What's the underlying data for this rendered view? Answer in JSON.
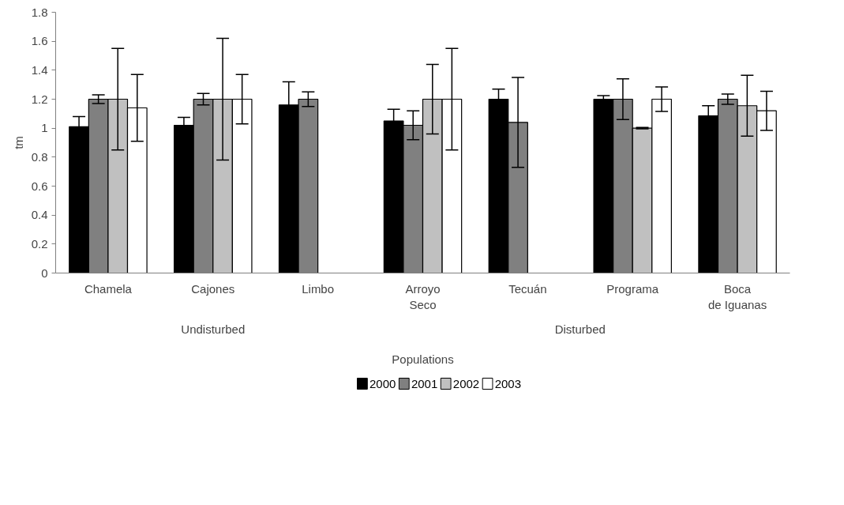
{
  "chart_data": {
    "type": "bar",
    "xlabel": "Populations",
    "ylabel": "tm",
    "categories": [
      "Chamela",
      "Cajones",
      "Limbo",
      "Arroyo Seco",
      "Tecuán",
      "Programa",
      "Boca de Iguanas"
    ],
    "series": [
      {
        "name": "2000",
        "color": "#000000",
        "values": [
          1.01,
          1.02,
          1.16,
          1.05,
          1.2,
          1.2,
          1.085
        ],
        "errors": [
          0.07,
          0.055,
          0.16,
          0.08,
          0.07,
          0.025,
          0.07
        ]
      },
      {
        "name": "2001",
        "color": "#808080",
        "values": [
          1.2,
          1.2,
          1.2,
          1.02,
          1.04,
          1.2,
          1.2
        ],
        "errors": [
          0.03,
          0.04,
          0.05,
          0.1,
          0.31,
          0.14,
          0.035
        ]
      },
      {
        "name": "2002",
        "color": "#c0c0c0",
        "values": [
          1.2,
          1.2,
          0,
          1.2,
          0,
          1.0,
          1.155
        ],
        "errors": [
          0.35,
          0.42,
          null,
          0.24,
          null,
          0.005,
          0.21
        ]
      },
      {
        "name": "2003",
        "color": "#ffffff",
        "values": [
          1.14,
          1.2,
          0,
          1.2,
          0,
          1.2,
          1.12
        ],
        "errors": [
          0.23,
          0.17,
          null,
          0.35,
          null,
          0.085,
          0.135
        ]
      }
    ],
    "annotations": [
      "Undisturbed",
      "Disturbed"
    ],
    "ylim": [
      0,
      1.8
    ],
    "yticks": [
      0,
      0.2,
      0.4,
      0.6,
      0.8,
      1,
      1.2,
      1.4,
      1.6,
      1.8
    ],
    "grid": false,
    "legend": "bottom"
  }
}
